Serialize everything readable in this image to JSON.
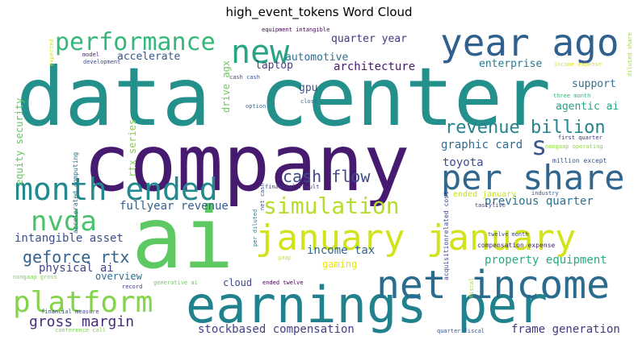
{
  "title": "high_event_tokens Word Cloud",
  "chart_data": {
    "type": "wordcloud",
    "title": "high_event_tokens Word Cloud",
    "words": [
      {
        "text": "data center",
        "weight": 100,
        "color": "#23908b"
      },
      {
        "text": "company",
        "weight": 96,
        "color": "#461b6f"
      },
      {
        "text": "ai",
        "weight": 92,
        "color": "#5ec962"
      },
      {
        "text": "earnings per",
        "weight": 62,
        "color": "#21818c"
      },
      {
        "text": "net income",
        "weight": 48,
        "color": "#2a6b8e"
      },
      {
        "text": "year ago",
        "weight": 46,
        "color": "#30608d"
      },
      {
        "text": "january january",
        "weight": 44,
        "color": "#d2e21b"
      },
      {
        "text": "per share",
        "weight": 42,
        "color": "#31668e"
      },
      {
        "text": "new",
        "weight": 40,
        "color": "#26a484"
      },
      {
        "text": "month ended",
        "weight": 38,
        "color": "#23898e"
      },
      {
        "text": "platform",
        "weight": 36,
        "color": "#84d44b"
      },
      {
        "text": "nvda",
        "weight": 34,
        "color": "#4ac16d"
      },
      {
        "text": "performance",
        "weight": 30,
        "color": "#35b779"
      },
      {
        "text": "simulation",
        "weight": 28,
        "color": "#b5de2b"
      },
      {
        "text": "s",
        "weight": 26,
        "color": "#39558c"
      },
      {
        "text": "revenue billion",
        "weight": 22,
        "color": "#25838e"
      },
      {
        "text": "cash flow",
        "weight": 20,
        "color": "#3e4a89"
      },
      {
        "text": "geforce rtx",
        "weight": 20,
        "color": "#33628d"
      },
      {
        "text": "gross margin",
        "weight": 18,
        "color": "#472d7b"
      },
      {
        "text": "fullyear revenue",
        "weight": 14,
        "color": "#355f8d"
      },
      {
        "text": "intangible asset",
        "weight": 14,
        "color": "#3b518b"
      },
      {
        "text": "physical ai",
        "weight": 14,
        "color": "#414487"
      },
      {
        "text": "income tax",
        "weight": 14,
        "color": "#31688e"
      },
      {
        "text": "previous quarter",
        "weight": 14,
        "color": "#2c718e"
      },
      {
        "text": "property equipment",
        "weight": 14,
        "color": "#27ad81"
      },
      {
        "text": "graphic card",
        "weight": 14,
        "color": "#2f6c8e"
      },
      {
        "text": "toyota",
        "weight": 14,
        "color": "#3e4c8a"
      },
      {
        "text": "stockbased compensation",
        "weight": 14,
        "color": "#424086"
      },
      {
        "text": "frame generation",
        "weight": 14,
        "color": "#453882"
      },
      {
        "text": "architecture",
        "weight": 14,
        "color": "#48186a"
      },
      {
        "text": "laptop",
        "weight": 13,
        "color": "#433e85"
      },
      {
        "text": "accelerate",
        "weight": 13,
        "color": "#38588c"
      },
      {
        "text": "automotive",
        "weight": 13,
        "color": "#2d708e"
      },
      {
        "text": "quarter year",
        "weight": 13,
        "color": "#443983"
      },
      {
        "text": "enterprise",
        "weight": 13,
        "color": "#2a788e"
      },
      {
        "text": "support",
        "weight": 13,
        "color": "#2c728e"
      },
      {
        "text": "agentic ai",
        "weight": 13,
        "color": "#20a386"
      },
      {
        "text": "gpu",
        "weight": 13,
        "color": "#3b528b"
      },
      {
        "text": "gaming",
        "weight": 12,
        "color": "#e5e419"
      },
      {
        "text": "overview",
        "weight": 12,
        "color": "#2e6e8e"
      },
      {
        "text": "cloud",
        "weight": 12,
        "color": "#3f4788"
      },
      {
        "text": "equity security",
        "weight": 12,
        "color": "#5ec962"
      },
      {
        "text": "rtx series",
        "weight": 12,
        "color": "#89d548"
      },
      {
        "text": "drive agx",
        "weight": 12,
        "color": "#6ccd5a"
      },
      {
        "text": "ended january",
        "weight": 10,
        "color": "#c8e020"
      },
      {
        "text": "compensation expense",
        "weight": 8,
        "color": "#482677"
      },
      {
        "text": "accelerated computing",
        "weight": 8,
        "color": "#2c728e"
      },
      {
        "text": "acquisitionrelated cost",
        "weight": 8,
        "color": "#3f4889"
      },
      {
        "text": "million except",
        "weight": 8,
        "color": "#3b518b"
      },
      {
        "text": "first quarter",
        "weight": 7,
        "color": "#46307e"
      },
      {
        "text": "three month",
        "weight": 7,
        "color": "#31b57b"
      },
      {
        "text": "financial result",
        "weight": 7,
        "color": "#433e85"
      },
      {
        "text": "nongaap operating",
        "weight": 7,
        "color": "#8fd744"
      },
      {
        "text": "income expense",
        "weight": 7,
        "color": "#e0e318"
      },
      {
        "text": "diluted share",
        "weight": 7,
        "color": "#a2da37"
      },
      {
        "text": "twelve month",
        "weight": 7,
        "color": "#3e4a89"
      },
      {
        "text": "equipment intangible",
        "weight": 7,
        "color": "#440154"
      },
      {
        "text": "cash cash",
        "weight": 7,
        "color": "#3b528b"
      },
      {
        "text": "option",
        "weight": 7,
        "color": "#31688e"
      },
      {
        "text": "close",
        "weight": 7,
        "color": "#2e6f8e"
      },
      {
        "text": "development",
        "weight": 7,
        "color": "#3c4f8a"
      },
      {
        "text": "model",
        "weight": 7,
        "color": "#482475"
      },
      {
        "text": "expected",
        "weight": 7,
        "color": "#dde318"
      },
      {
        "text": "industry",
        "weight": 7,
        "color": "#3b528b"
      },
      {
        "text": "tastylive",
        "weight": 7,
        "color": "#3f4889"
      },
      {
        "text": "net cash",
        "weight": 7,
        "color": "#3a548c"
      },
      {
        "text": "per diluted",
        "weight": 7,
        "color": "#297b8e"
      },
      {
        "text": "ended twelve",
        "weight": 7,
        "color": "#440154"
      },
      {
        "text": "generative ai",
        "weight": 7,
        "color": "#6ccd5a"
      },
      {
        "text": "record",
        "weight": 7,
        "color": "#46337f"
      },
      {
        "text": "gaap",
        "weight": 7,
        "color": "#d8e219"
      },
      {
        "text": "nongaap gross",
        "weight": 7,
        "color": "#7ad151"
      },
      {
        "text": "financial measure",
        "weight": 7,
        "color": "#404688"
      },
      {
        "text": "conference call",
        "weight": 7,
        "color": "#7ad151"
      },
      {
        "text": "quarter fiscal",
        "weight": 7,
        "color": "#3a548c"
      },
      {
        "text": "fiscal",
        "weight": 7,
        "color": "#a5db36"
      }
    ]
  }
}
